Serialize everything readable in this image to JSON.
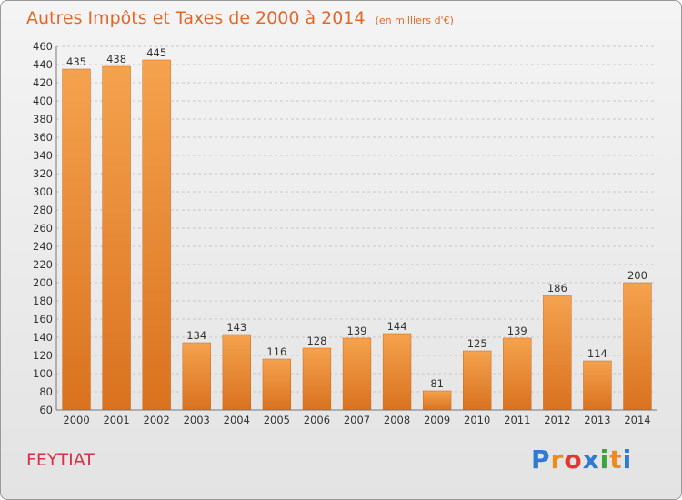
{
  "header": {
    "title": "Autres Impôts et Taxes de 2000 à 2014",
    "subtitle": "(en milliers d'€)"
  },
  "footer": {
    "place": "FEYTIAT",
    "logo_text": "Proxiti"
  },
  "colors": {
    "title": "#e0692a",
    "place": "#d6304a",
    "bar_light": "#f5a24e",
    "bar_dark": "#d9721f",
    "grid": "#c8c8c8",
    "logo": [
      "#2f7bd3",
      "#f08a1c",
      "#e5352c",
      "#2f7bd3",
      "#3aa63a",
      "#f08a1c",
      "#2f7bd3"
    ]
  },
  "chart_data": {
    "type": "bar",
    "title": "Autres Impôts et Taxes de 2000 à 2014",
    "subtitle": "(en milliers d'€)",
    "categories": [
      "2000",
      "2001",
      "2002",
      "2003",
      "2004",
      "2005",
      "2006",
      "2007",
      "2008",
      "2009",
      "2010",
      "2011",
      "2012",
      "2013",
      "2014"
    ],
    "values": [
      435,
      438,
      445,
      134,
      143,
      116,
      128,
      139,
      144,
      81,
      125,
      139,
      186,
      114,
      200
    ],
    "ylim": [
      60,
      460
    ],
    "ytick_step": 20,
    "grid": true,
    "data_labels": true,
    "legend": "none"
  }
}
